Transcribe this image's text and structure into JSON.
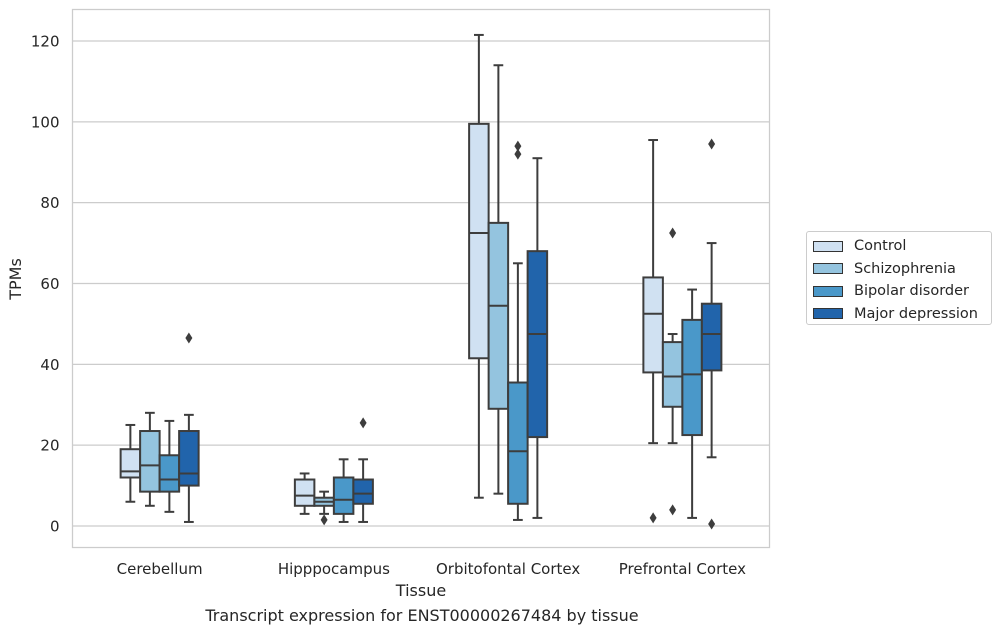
{
  "caption": "Transcript expression for ENST00000267484 by tissue",
  "chart_data": {
    "type": "box",
    "xlabel": "Tissue",
    "ylabel": "TPMs",
    "ylim": [
      -5,
      128
    ],
    "yticks": [
      0,
      20,
      40,
      60,
      80,
      100,
      120
    ],
    "grid": true,
    "legend_position": "right",
    "categories": [
      "Cerebellum",
      "Hipppocampus",
      "Orbitofontal Cortex",
      "Prefrontal Cortex"
    ],
    "series": [
      {
        "name": "Control",
        "color": "#d0e1f2",
        "boxes": [
          {
            "whisker_low": 6,
            "q1": 12,
            "median": 13.5,
            "q3": 19,
            "whisker_high": 25,
            "outliers": []
          },
          {
            "whisker_low": 3,
            "q1": 5,
            "median": 7.5,
            "q3": 11.5,
            "whisker_high": 13,
            "outliers": []
          },
          {
            "whisker_low": 7,
            "q1": 41.5,
            "median": 72.5,
            "q3": 99.5,
            "whisker_high": 121.5,
            "outliers": []
          },
          {
            "whisker_low": 20.5,
            "q1": 38,
            "median": 52.5,
            "q3": 61.5,
            "whisker_high": 95.5,
            "outliers": [
              2
            ]
          }
        ]
      },
      {
        "name": "Schizophrenia",
        "color": "#94c4df",
        "boxes": [
          {
            "whisker_low": 5,
            "q1": 8.5,
            "median": 15,
            "q3": 23.5,
            "whisker_high": 28,
            "outliers": []
          },
          {
            "whisker_low": 3,
            "q1": 5,
            "median": 6,
            "q3": 7,
            "whisker_high": 8.5,
            "outliers": [
              1.5
            ]
          },
          {
            "whisker_low": 8,
            "q1": 29,
            "median": 54.5,
            "q3": 75,
            "whisker_high": 114,
            "outliers": []
          },
          {
            "whisker_low": 20.5,
            "q1": 29.5,
            "median": 37,
            "q3": 45.5,
            "whisker_high": 47.5,
            "outliers": [
              72.5,
              4
            ]
          }
        ]
      },
      {
        "name": "Bipolar disorder",
        "color": "#4a98c9",
        "boxes": [
          {
            "whisker_low": 3.5,
            "q1": 8.5,
            "median": 11.5,
            "q3": 17.5,
            "whisker_high": 26,
            "outliers": []
          },
          {
            "whisker_low": 1,
            "q1": 3,
            "median": 6.5,
            "q3": 12,
            "whisker_high": 16.5,
            "outliers": []
          },
          {
            "whisker_low": 1.5,
            "q1": 5.5,
            "median": 18.5,
            "q3": 35.5,
            "whisker_high": 65,
            "outliers": [
              94,
              92
            ]
          },
          {
            "whisker_low": 2,
            "q1": 22.5,
            "median": 37.5,
            "q3": 51,
            "whisker_high": 58.5,
            "outliers": []
          }
        ]
      },
      {
        "name": "Major depression",
        "color": "#2164ab",
        "boxes": [
          {
            "whisker_low": 1,
            "q1": 10,
            "median": 13,
            "q3": 23.5,
            "whisker_high": 27.5,
            "outliers": [
              46.5
            ]
          },
          {
            "whisker_low": 1,
            "q1": 5.5,
            "median": 8,
            "q3": 11.5,
            "whisker_high": 16.5,
            "outliers": [
              25.5
            ]
          },
          {
            "whisker_low": 2,
            "q1": 22,
            "median": 47.5,
            "q3": 68,
            "whisker_high": 91,
            "outliers": []
          },
          {
            "whisker_low": 17,
            "q1": 38.5,
            "median": 47.5,
            "q3": 55,
            "whisker_high": 70,
            "outliers": [
              94.5,
              0.5
            ]
          }
        ]
      }
    ]
  }
}
